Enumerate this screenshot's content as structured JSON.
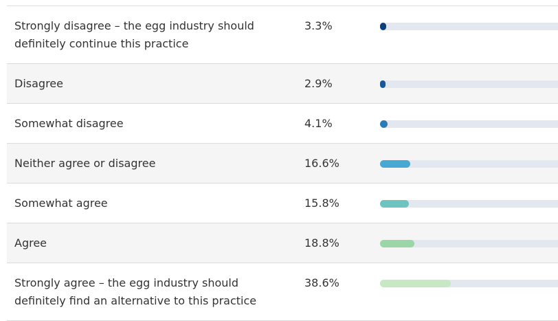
{
  "chart_data": {
    "type": "bar",
    "categories": [
      "Strongly disagree – the egg industry should definitely continue this practice",
      "Disagree",
      "Somewhat disagree",
      "Neither agree or disagree",
      "Somewhat agree",
      "Agree",
      "Strongly agree – the egg industry should definitely find an alternative to this practice"
    ],
    "values": [
      3.3,
      2.9,
      4.1,
      16.6,
      15.8,
      18.8,
      38.6
    ],
    "value_labels": [
      "3.3%",
      "2.9%",
      "4.1%",
      "16.6%",
      "15.8%",
      "18.8%",
      "38.6%"
    ],
    "colors": [
      "#0b3f7f",
      "#15599c",
      "#2b7bb8",
      "#46a8d3",
      "#6cc3c0",
      "#9ad6a6",
      "#c6e8c3"
    ],
    "xlim": [
      0,
      100
    ]
  }
}
